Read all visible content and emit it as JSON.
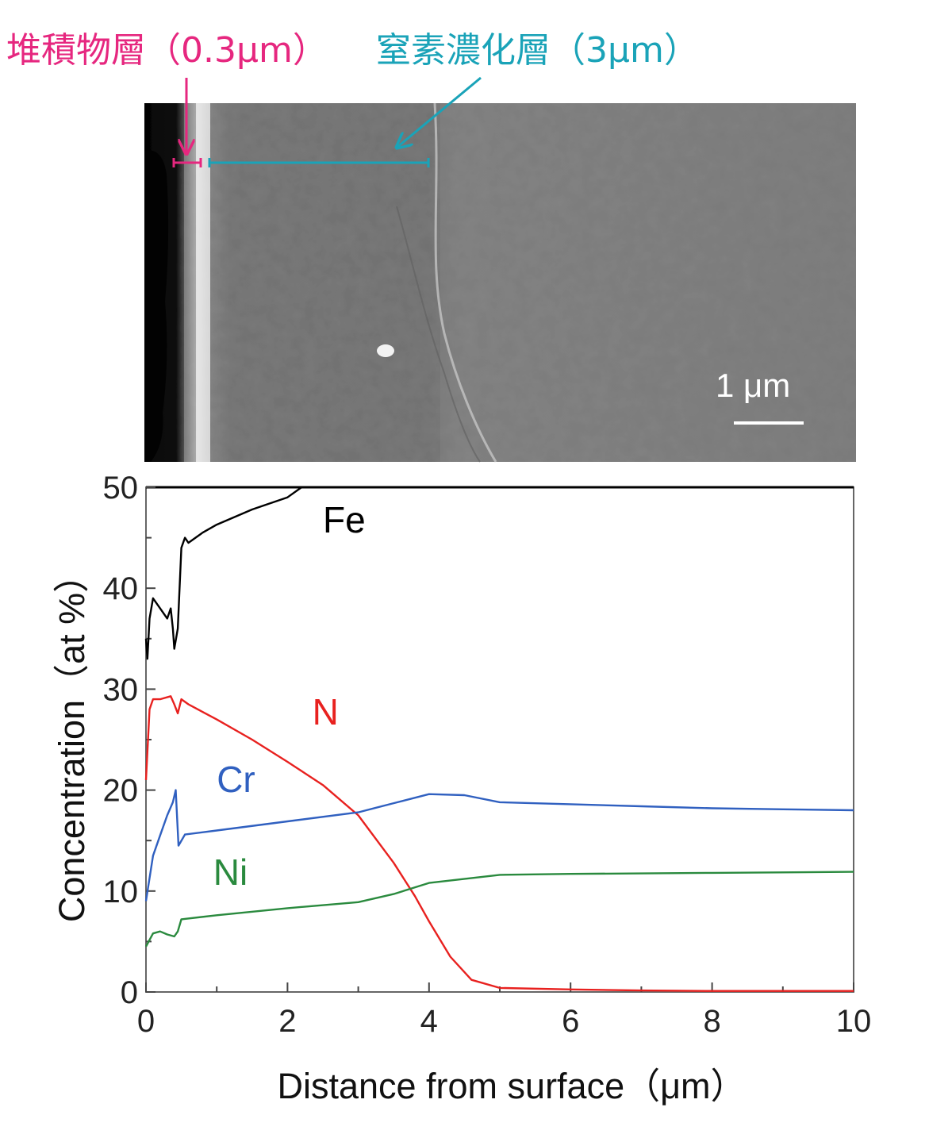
{
  "annotations": {
    "deposit_layer": "堆積物層（0.3μm）",
    "nitrogen_layer": "窒素濃化層（3μm）",
    "deposit_color": "#e6277f",
    "nitrogen_color": "#1aa3b8"
  },
  "micrograph": {
    "scale_label": "1 μm"
  },
  "chart_data": {
    "type": "line",
    "xlabel": "Distance from surface（μm）",
    "ylabel": "Concentration（at %）",
    "xlim": [
      0,
      10
    ],
    "ylim": [
      0,
      50
    ],
    "x_ticks": [
      "0",
      "2",
      "4",
      "6",
      "8",
      "10"
    ],
    "y_ticks": [
      "0",
      "10",
      "20",
      "30",
      "40",
      "50"
    ],
    "series": [
      {
        "name": "Fe",
        "color": "#000000",
        "points": [
          [
            0,
            35
          ],
          [
            0.02,
            33
          ],
          [
            0.05,
            37
          ],
          [
            0.1,
            39
          ],
          [
            0.15,
            38.5
          ],
          [
            0.2,
            38
          ],
          [
            0.3,
            37
          ],
          [
            0.35,
            38
          ],
          [
            0.38,
            36
          ],
          [
            0.4,
            34
          ],
          [
            0.45,
            36
          ],
          [
            0.5,
            44
          ],
          [
            0.55,
            45
          ],
          [
            0.6,
            44.5
          ],
          [
            0.8,
            45.5
          ],
          [
            1.0,
            46.3
          ],
          [
            1.5,
            47.8
          ],
          [
            2.0,
            49
          ],
          [
            2.2,
            50
          ]
        ]
      },
      {
        "name": "N",
        "color": "#e8211f",
        "points": [
          [
            0,
            21
          ],
          [
            0.05,
            28
          ],
          [
            0.1,
            29
          ],
          [
            0.2,
            29
          ],
          [
            0.35,
            29.3
          ],
          [
            0.4,
            28.5
          ],
          [
            0.45,
            27.6
          ],
          [
            0.5,
            29
          ],
          [
            0.6,
            28.5
          ],
          [
            1.0,
            27
          ],
          [
            1.5,
            25
          ],
          [
            2.0,
            22.8
          ],
          [
            2.5,
            20.5
          ],
          [
            3.0,
            17.5
          ],
          [
            3.5,
            12.8
          ],
          [
            3.8,
            9.5
          ],
          [
            4.0,
            7
          ],
          [
            4.3,
            3.5
          ],
          [
            4.6,
            1.2
          ],
          [
            5.0,
            0.4
          ],
          [
            6,
            0.25
          ],
          [
            7,
            0.15
          ],
          [
            8,
            0.1
          ],
          [
            10,
            0.1
          ]
        ]
      },
      {
        "name": "Cr",
        "color": "#3060c0",
        "points": [
          [
            0,
            9
          ],
          [
            0.1,
            13.5
          ],
          [
            0.2,
            15.5
          ],
          [
            0.3,
            17.5
          ],
          [
            0.38,
            18.8
          ],
          [
            0.42,
            20
          ],
          [
            0.46,
            14.5
          ],
          [
            0.55,
            15.6
          ],
          [
            1.0,
            16
          ],
          [
            2.0,
            16.9
          ],
          [
            3.0,
            17.8
          ],
          [
            3.5,
            18.7
          ],
          [
            4.0,
            19.6
          ],
          [
            4.5,
            19.5
          ],
          [
            5.0,
            18.8
          ],
          [
            6.0,
            18.6
          ],
          [
            7.0,
            18.4
          ],
          [
            8.0,
            18.2
          ],
          [
            9.0,
            18.1
          ],
          [
            10.0,
            18
          ]
        ]
      },
      {
        "name": "Ni",
        "color": "#2a8a3e",
        "points": [
          [
            0,
            4.5
          ],
          [
            0.1,
            5.8
          ],
          [
            0.2,
            6
          ],
          [
            0.3,
            5.7
          ],
          [
            0.4,
            5.5
          ],
          [
            0.45,
            6
          ],
          [
            0.5,
            7.2
          ],
          [
            1.0,
            7.6
          ],
          [
            2.0,
            8.3
          ],
          [
            3.0,
            8.9
          ],
          [
            3.5,
            9.7
          ],
          [
            4.0,
            10.8
          ],
          [
            5.0,
            11.6
          ],
          [
            6.0,
            11.7
          ],
          [
            8.0,
            11.8
          ],
          [
            10.0,
            11.9
          ]
        ]
      }
    ],
    "series_labels": [
      {
        "name": "Fe",
        "x": 2.5,
        "y": 45.5
      },
      {
        "name": "N",
        "x": 2.35,
        "y": 26.5
      },
      {
        "name": "Cr",
        "x": 1.0,
        "y": 19.8
      },
      {
        "name": "Ni",
        "x": 0.95,
        "y": 10.6
      }
    ]
  }
}
